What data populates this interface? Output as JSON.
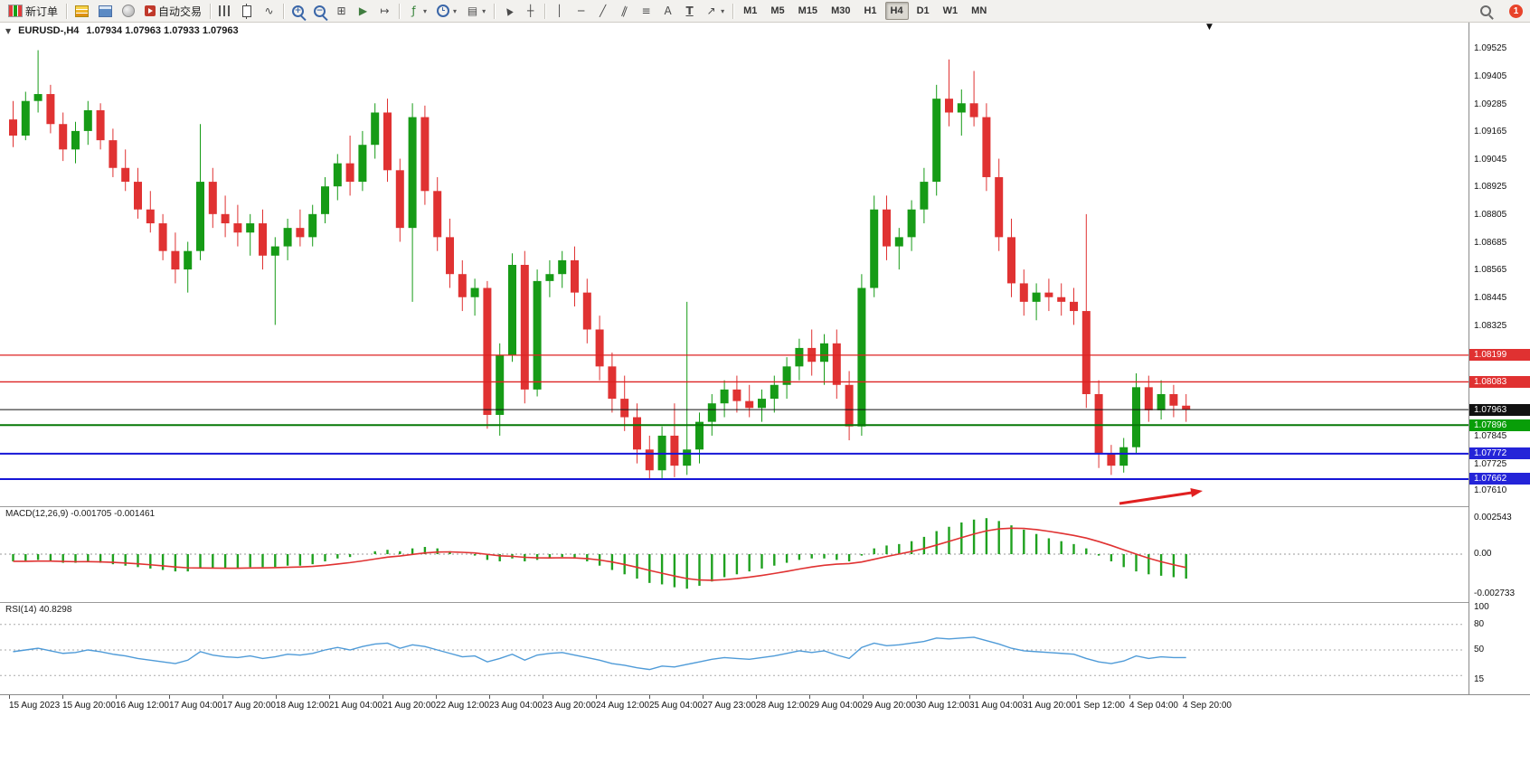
{
  "glyphs": {
    "one_click": "▼",
    "shift_marker": "▼",
    "dropdown": "▾"
  },
  "toolbar": {
    "new_order": "新订单",
    "auto_trading": "自动交易",
    "notification_badge": "1",
    "timeframes": [
      "M1",
      "M5",
      "M15",
      "M30",
      "H1",
      "H4",
      "D1",
      "W1",
      "MN"
    ],
    "active_timeframe": "H4",
    "items": [
      {
        "t": "btn",
        "name": "new-order-button",
        "ic": "neworder",
        "label_key": "new_order"
      },
      {
        "t": "sep"
      },
      {
        "t": "ico",
        "name": "market-watch-icon",
        "ic": "mw"
      },
      {
        "t": "ico",
        "name": "data-window-icon",
        "ic": "dw"
      },
      {
        "t": "ico",
        "name": "navigator-icon",
        "ic": "nav"
      },
      {
        "t": "btn",
        "name": "auto-trading-button",
        "ic": "autotrade",
        "label_key": "auto_trading"
      },
      {
        "t": "sep"
      },
      {
        "t": "ico",
        "name": "bar-chart-icon",
        "ic": "bars"
      },
      {
        "t": "ico",
        "name": "candlestick-chart-icon",
        "ic": "candle"
      },
      {
        "t": "ico",
        "name": "line-chart-icon",
        "glyph": "∿"
      },
      {
        "t": "sep"
      },
      {
        "t": "ico",
        "name": "zoom-in-icon",
        "ic": "zoom",
        "glyph": "+"
      },
      {
        "t": "ico",
        "name": "zoom-out-icon",
        "ic": "zoom",
        "glyph": "−"
      },
      {
        "t": "ico",
        "name": "tile-windows-icon",
        "glyph": "⊞"
      },
      {
        "t": "ico",
        "name": "auto-scroll-icon",
        "glyph": "▶",
        "color": "#3f7d3f"
      },
      {
        "t": "ico",
        "name": "chart-shift-icon",
        "glyph": "↦"
      },
      {
        "t": "sep"
      },
      {
        "t": "ico",
        "name": "indicators-icon",
        "glyph": "ƒ",
        "color": "#2e7d32",
        "dd": true
      },
      {
        "t": "ico",
        "name": "periods-icon",
        "ic": "clock",
        "dd": true
      },
      {
        "t": "ico",
        "name": "templates-icon",
        "glyph": "▤",
        "dd": true
      },
      {
        "t": "sep"
      },
      {
        "t": "ico",
        "name": "cursor-icon",
        "glyph": "▲",
        "cls": "rot-cursor"
      },
      {
        "t": "ico",
        "name": "crosshair-icon",
        "glyph": "┼"
      },
      {
        "t": "sep"
      },
      {
        "t": "ico",
        "name": "vertical-line-icon",
        "glyph": "│"
      },
      {
        "t": "ico",
        "name": "horizontal-line-icon",
        "glyph": "─"
      },
      {
        "t": "ico",
        "name": "trendline-icon",
        "glyph": "╱"
      },
      {
        "t": "ico",
        "name": "channel-icon",
        "glyph": "∥",
        "cls": "rot-chan"
      },
      {
        "t": "ico",
        "name": "fibonacci-icon",
        "glyph": "≡"
      },
      {
        "t": "ico",
        "name": "text-icon",
        "glyph": "A"
      },
      {
        "t": "ico",
        "name": "text-label-icon",
        "glyph": "T",
        "cls": "u-tlabel"
      },
      {
        "t": "ico",
        "name": "arrows-icon",
        "glyph": "↗",
        "dd": true
      },
      {
        "t": "sep"
      },
      {
        "t": "tfgroup"
      },
      {
        "t": "spacer"
      },
      {
        "t": "ico",
        "name": "search-icon",
        "ic": "search"
      },
      {
        "t": "badge",
        "name": "notification-badge",
        "label_key": "notification_badge"
      }
    ]
  },
  "chart": {
    "title_symbol": "EURUSD-,H4",
    "title_ohlc": "1.07934 1.07963 1.07933 1.07963"
  },
  "indicators": {
    "macd_text": "MACD(12,26,9) -0.001705 -0.001461",
    "rsi_text": "RSI(14) 40.8298"
  },
  "scales": {
    "price_regular": [
      "1.09525",
      "1.09405",
      "1.09285",
      "1.09165",
      "1.09045",
      "1.08925",
      "1.08805",
      "1.08685",
      "1.08565",
      "1.08445",
      "1.08325",
      "1.07845",
      "1.07725",
      "1.07610"
    ],
    "price_badges": [
      {
        "text": "1.08199",
        "color": "#e03131"
      },
      {
        "text": "1.08083",
        "color": "#e03131"
      },
      {
        "text": "1.07963",
        "color": "#111111"
      },
      {
        "text": "1.07896",
        "color": "#089e08"
      },
      {
        "text": "1.07772",
        "color": "#2424d8"
      },
      {
        "text": "1.07662",
        "color": "#2424d8"
      }
    ],
    "macd": [
      "0.002543",
      "0.00",
      "-0.002733"
    ],
    "rsi": [
      "100",
      "80",
      "50",
      "15"
    ]
  },
  "chart_data": {
    "type": "candlestick",
    "symbol": "EURUSD-",
    "timeframe": "H4",
    "panels": [
      "price",
      "macd",
      "rsi"
    ],
    "current_ohlc": {
      "open": 1.07934,
      "high": 1.07963,
      "low": 1.07933,
      "close": 1.07963
    },
    "colors": {
      "up": "#169b16",
      "down": "#e03232",
      "macd_hist": "#1fa11f",
      "macd_signal": "#e03232",
      "rsi": "#4f9bd8",
      "current_price": "#111111"
    },
    "hlines": [
      {
        "price": 1.08199,
        "color": "#dd2222",
        "kind": "resistance"
      },
      {
        "price": 1.08083,
        "color": "#dd2222",
        "kind": "resistance"
      },
      {
        "price": 1.07963,
        "color": "#111111",
        "kind": "current-price"
      },
      {
        "price": 1.07896,
        "color": "#067806",
        "kind": "level"
      },
      {
        "price": 1.07772,
        "color": "#1616d6",
        "kind": "support"
      },
      {
        "price": 1.07662,
        "color": "#1616d6",
        "kind": "support"
      }
    ],
    "annotation_arrow": {
      "color": "#e02020",
      "points_to": "1.07662 support line"
    },
    "x_labels": [
      "15 Aug 2023",
      "15 Aug 20:00",
      "16 Aug 12:00",
      "17 Aug 04:00",
      "17 Aug 20:00",
      "18 Aug 12:00",
      "21 Aug 04:00",
      "21 Aug 20:00",
      "22 Aug 12:00",
      "23 Aug 04:00",
      "23 Aug 20:00",
      "24 Aug 12:00",
      "25 Aug 04:00",
      "27 Aug 23:00",
      "28 Aug 12:00",
      "29 Aug 04:00",
      "29 Aug 20:00",
      "30 Aug 12:00",
      "31 Aug 04:00",
      "31 Aug 20:00",
      "1 Sep 12:00",
      "4 Sep 04:00",
      "4 Sep 20:00"
    ],
    "price_axis": {
      "min": 1.0756,
      "max": 1.0962
    },
    "candles": [
      [
        1.0922,
        1.093,
        1.091,
        1.0915
      ],
      [
        1.0915,
        1.0934,
        1.0913,
        1.093
      ],
      [
        1.093,
        1.0952,
        1.0925,
        1.0933
      ],
      [
        1.0933,
        1.0937,
        1.0916,
        1.092
      ],
      [
        1.092,
        1.0925,
        1.0904,
        1.0909
      ],
      [
        1.0909,
        1.0921,
        1.0903,
        1.0917
      ],
      [
        1.0917,
        1.093,
        1.0911,
        1.0926
      ],
      [
        1.0926,
        1.0929,
        1.0909,
        1.0913
      ],
      [
        1.0913,
        1.0918,
        1.0897,
        1.0901
      ],
      [
        1.0901,
        1.0909,
        1.0891,
        1.0895
      ],
      [
        1.0895,
        1.0901,
        1.0879,
        1.0883
      ],
      [
        1.0883,
        1.0891,
        1.0873,
        1.0877
      ],
      [
        1.0877,
        1.0881,
        1.0861,
        1.0865
      ],
      [
        1.0865,
        1.0873,
        1.0851,
        1.0857
      ],
      [
        1.0857,
        1.0869,
        1.0847,
        1.0865
      ],
      [
        1.0865,
        1.092,
        1.0861,
        1.0895
      ],
      [
        1.0895,
        1.0901,
        1.0875,
        1.0881
      ],
      [
        1.0881,
        1.0889,
        1.0871,
        1.0877
      ],
      [
        1.0877,
        1.0885,
        1.0867,
        1.0873
      ],
      [
        1.0873,
        1.0881,
        1.0863,
        1.0877
      ],
      [
        1.0877,
        1.0883,
        1.0857,
        1.0863
      ],
      [
        1.0863,
        1.0871,
        1.0833,
        1.0867
      ],
      [
        1.0867,
        1.0879,
        1.0861,
        1.0875
      ],
      [
        1.0875,
        1.0883,
        1.0867,
        1.0871
      ],
      [
        1.0871,
        1.0885,
        1.0867,
        1.0881
      ],
      [
        1.0881,
        1.0897,
        1.0877,
        1.0893
      ],
      [
        1.0893,
        1.0907,
        1.0887,
        1.0903
      ],
      [
        1.0903,
        1.0915,
        1.0889,
        1.0895
      ],
      [
        1.0895,
        1.0917,
        1.0891,
        1.0911
      ],
      [
        1.0911,
        1.0929,
        1.0905,
        1.0925
      ],
      [
        1.0925,
        1.0931,
        1.0895,
        1.09
      ],
      [
        1.09,
        1.0905,
        1.0869,
        1.0875
      ],
      [
        1.0875,
        1.0929,
        1.0843,
        1.0923
      ],
      [
        1.0923,
        1.0928,
        1.0885,
        1.0891
      ],
      [
        1.0891,
        1.0897,
        1.0865,
        1.0871
      ],
      [
        1.0871,
        1.0879,
        1.0849,
        1.0855
      ],
      [
        1.0855,
        1.0861,
        1.0839,
        1.0845
      ],
      [
        1.0845,
        1.0853,
        1.0837,
        1.0849
      ],
      [
        1.0849,
        1.0852,
        1.0788,
        1.0794
      ],
      [
        1.0794,
        1.0825,
        1.0785,
        1.082
      ],
      [
        1.082,
        1.0864,
        1.0817,
        1.0859
      ],
      [
        1.0859,
        1.0865,
        1.0799,
        1.0805
      ],
      [
        1.0805,
        1.0857,
        1.0802,
        1.0852
      ],
      [
        1.0852,
        1.0861,
        1.0845,
        1.0855
      ],
      [
        1.0855,
        1.0865,
        1.0849,
        1.0861
      ],
      [
        1.0861,
        1.0867,
        1.0841,
        1.0847
      ],
      [
        1.0847,
        1.0853,
        1.0825,
        1.0831
      ],
      [
        1.0831,
        1.0837,
        1.0809,
        1.0815
      ],
      [
        1.0815,
        1.0821,
        1.0795,
        1.0801
      ],
      [
        1.0801,
        1.0811,
        1.0787,
        1.0793
      ],
      [
        1.0793,
        1.0799,
        1.0773,
        1.0779
      ],
      [
        1.0779,
        1.0785,
        1.0766,
        1.077
      ],
      [
        1.077,
        1.0789,
        1.0766,
        1.0785
      ],
      [
        1.0785,
        1.0799,
        1.0767,
        1.0772
      ],
      [
        1.0772,
        1.0843,
        1.0768,
        1.0779
      ],
      [
        1.0779,
        1.0795,
        1.0773,
        1.0791
      ],
      [
        1.0791,
        1.0803,
        1.0785,
        1.0799
      ],
      [
        1.0799,
        1.0809,
        1.0793,
        1.0805
      ],
      [
        1.0805,
        1.0811,
        1.0795,
        1.08
      ],
      [
        1.08,
        1.0807,
        1.0793,
        1.0797
      ],
      [
        1.0797,
        1.0805,
        1.0791,
        1.0801
      ],
      [
        1.0801,
        1.0811,
        1.0795,
        1.0807
      ],
      [
        1.0807,
        1.0819,
        1.0801,
        1.0815
      ],
      [
        1.0815,
        1.0827,
        1.0809,
        1.0823
      ],
      [
        1.0823,
        1.0831,
        1.0811,
        1.0817
      ],
      [
        1.0817,
        1.0829,
        1.0807,
        1.0825
      ],
      [
        1.0825,
        1.0831,
        1.0801,
        1.0807
      ],
      [
        1.0807,
        1.0813,
        1.0783,
        1.0789
      ],
      [
        1.0789,
        1.0855,
        1.0785,
        1.0849
      ],
      [
        1.0849,
        1.0889,
        1.0845,
        1.0883
      ],
      [
        1.0883,
        1.0889,
        1.0861,
        1.0867
      ],
      [
        1.0867,
        1.0875,
        1.0857,
        1.0871
      ],
      [
        1.0871,
        1.0887,
        1.0865,
        1.0883
      ],
      [
        1.0883,
        1.0901,
        1.0877,
        1.0895
      ],
      [
        1.0895,
        1.0937,
        1.0889,
        1.0931
      ],
      [
        1.0931,
        1.0948,
        1.0919,
        1.0925
      ],
      [
        1.0925,
        1.0935,
        1.0915,
        1.0929
      ],
      [
        1.0929,
        1.0943,
        1.0919,
        1.0923
      ],
      [
        1.0923,
        1.0929,
        1.0891,
        1.0897
      ],
      [
        1.0897,
        1.0905,
        1.0865,
        1.0871
      ],
      [
        1.0871,
        1.0879,
        1.0845,
        1.0851
      ],
      [
        1.0851,
        1.0857,
        1.0837,
        1.0843
      ],
      [
        1.0843,
        1.0851,
        1.0835,
        1.0847
      ],
      [
        1.0847,
        1.0853,
        1.0839,
        1.0845
      ],
      [
        1.0845,
        1.0851,
        1.0837,
        1.0843
      ],
      [
        1.0843,
        1.0849,
        1.0833,
        1.0839
      ],
      [
        1.0839,
        1.0881,
        1.0797,
        1.0803
      ],
      [
        1.0803,
        1.0809,
        1.0771,
        1.0777
      ],
      [
        1.0777,
        1.0781,
        1.0768,
        1.0772
      ],
      [
        1.0772,
        1.0784,
        1.0769,
        1.078
      ],
      [
        1.078,
        1.0812,
        1.0777,
        1.0806
      ],
      [
        1.0806,
        1.0811,
        1.0791,
        1.0796
      ],
      [
        1.0796,
        1.0809,
        1.0792,
        1.0803
      ],
      [
        1.0803,
        1.0807,
        1.0793,
        1.0798
      ],
      [
        1.0798,
        1.0803,
        1.0791,
        1.07963
      ]
    ],
    "macd": {
      "label": "MACD(12,26,9)",
      "values": [
        -0.001705,
        -0.001461
      ],
      "axis": [
        0.002543,
        0,
        -0.002733
      ],
      "histogram": [
        -0.0005,
        -0.0005,
        -0.0004,
        -0.0005,
        -0.0006,
        -0.0006,
        -0.0005,
        -0.0006,
        -0.0007,
        -0.0008,
        -0.0009,
        -0.001,
        -0.0011,
        -0.0012,
        -0.0012,
        -0.001,
        -0.001,
        -0.001,
        -0.001,
        -0.0009,
        -0.0009,
        -0.0009,
        -0.0008,
        -0.0008,
        -0.0007,
        -0.0005,
        -0.0003,
        -0.0002,
        0.0,
        0.0002,
        0.0003,
        0.0002,
        0.0004,
        0.0005,
        0.0004,
        0.0002,
        0.0,
        -0.0001,
        -0.0004,
        -0.0005,
        -0.0003,
        -0.0005,
        -0.0004,
        -0.0003,
        -0.0002,
        -0.0003,
        -0.0005,
        -0.0008,
        -0.0011,
        -0.0014,
        -0.0017,
        -0.002,
        -0.0021,
        -0.0023,
        -0.0024,
        -0.0022,
        -0.0019,
        -0.0016,
        -0.0014,
        -0.0012,
        -0.001,
        -0.0008,
        -0.0006,
        -0.0004,
        -0.0003,
        -0.0003,
        -0.0004,
        -0.0005,
        -0.0001,
        0.0004,
        0.0006,
        0.0007,
        0.0009,
        0.0012,
        0.0016,
        0.0019,
        0.0022,
        0.0024,
        0.0025,
        0.0023,
        0.002,
        0.0017,
        0.0014,
        0.0011,
        0.0009,
        0.0007,
        0.0004,
        -0.0001,
        -0.0005,
        -0.0009,
        -0.0012,
        -0.0014,
        -0.0015,
        -0.0016,
        -0.0017
      ]
    },
    "rsi": {
      "label": "RSI(14)",
      "current": 40.8298,
      "levels": [
        80,
        50,
        20
      ],
      "values": [
        48,
        50,
        52,
        49,
        46,
        47,
        50,
        48,
        45,
        43,
        40,
        38,
        36,
        34,
        38,
        48,
        44,
        42,
        41,
        43,
        40,
        42,
        45,
        44,
        46,
        50,
        53,
        50,
        54,
        57,
        58,
        52,
        56,
        54,
        50,
        46,
        42,
        43,
        36,
        40,
        45,
        38,
        44,
        46,
        47,
        44,
        41,
        38,
        34,
        32,
        29,
        27,
        31,
        30,
        33,
        36,
        39,
        41,
        40,
        39,
        41,
        43,
        46,
        49,
        47,
        49,
        44,
        40,
        53,
        58,
        55,
        56,
        58,
        60,
        64,
        63,
        64,
        65,
        61,
        57,
        52,
        49,
        48,
        47,
        46,
        45,
        40,
        36,
        34,
        37,
        43,
        40,
        42,
        41,
        41
      ]
    }
  }
}
